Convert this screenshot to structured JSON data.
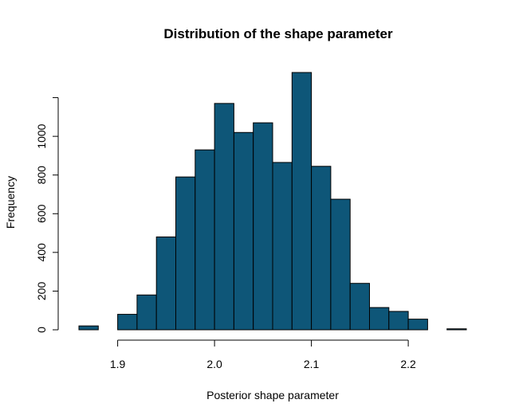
{
  "chart_data": {
    "type": "bar",
    "title": "Distribution of the shape parameter",
    "xlabel": "Posterior shape parameter",
    "ylabel": "Frequency",
    "bar_color": "#0e5678",
    "xlim": [
      1.86,
      2.26
    ],
    "ylim": [
      0,
      1330
    ],
    "bin_width": 0.02,
    "bins": [
      {
        "x0": 1.86,
        "x1": 1.88,
        "count": 20
      },
      {
        "x0": 1.88,
        "x1": 1.9,
        "count": 0
      },
      {
        "x0": 1.9,
        "x1": 1.92,
        "count": 80
      },
      {
        "x0": 1.92,
        "x1": 1.94,
        "count": 180
      },
      {
        "x0": 1.94,
        "x1": 1.96,
        "count": 480
      },
      {
        "x0": 1.96,
        "x1": 1.98,
        "count": 790
      },
      {
        "x0": 1.98,
        "x1": 2.0,
        "count": 930
      },
      {
        "x0": 2.0,
        "x1": 2.02,
        "count": 1170
      },
      {
        "x0": 2.02,
        "x1": 2.04,
        "count": 1020
      },
      {
        "x0": 2.04,
        "x1": 2.06,
        "count": 1070
      },
      {
        "x0": 2.06,
        "x1": 2.08,
        "count": 865
      },
      {
        "x0": 2.08,
        "x1": 2.1,
        "count": 1330
      },
      {
        "x0": 2.1,
        "x1": 2.12,
        "count": 845
      },
      {
        "x0": 2.12,
        "x1": 2.14,
        "count": 675
      },
      {
        "x0": 2.14,
        "x1": 2.16,
        "count": 240
      },
      {
        "x0": 2.16,
        "x1": 2.18,
        "count": 115
      },
      {
        "x0": 2.18,
        "x1": 2.2,
        "count": 95
      },
      {
        "x0": 2.2,
        "x1": 2.22,
        "count": 55
      },
      {
        "x0": 2.22,
        "x1": 2.24,
        "count": 0
      },
      {
        "x0": 2.24,
        "x1": 2.26,
        "count": 5
      }
    ],
    "x_ticks": [
      {
        "value": 1.9,
        "label": "1.9"
      },
      {
        "value": 2.0,
        "label": "2.0"
      },
      {
        "value": 2.1,
        "label": "2.1"
      },
      {
        "value": 2.2,
        "label": "2.2"
      }
    ],
    "y_ticks": [
      {
        "value": 0,
        "label": "0"
      },
      {
        "value": 200,
        "label": "200"
      },
      {
        "value": 400,
        "label": "400"
      },
      {
        "value": 600,
        "label": "600"
      },
      {
        "value": 800,
        "label": "800"
      },
      {
        "value": 1000,
        "label": "1000"
      },
      {
        "value": 1200,
        "label": ""
      }
    ],
    "grid": false,
    "legend": "none"
  }
}
